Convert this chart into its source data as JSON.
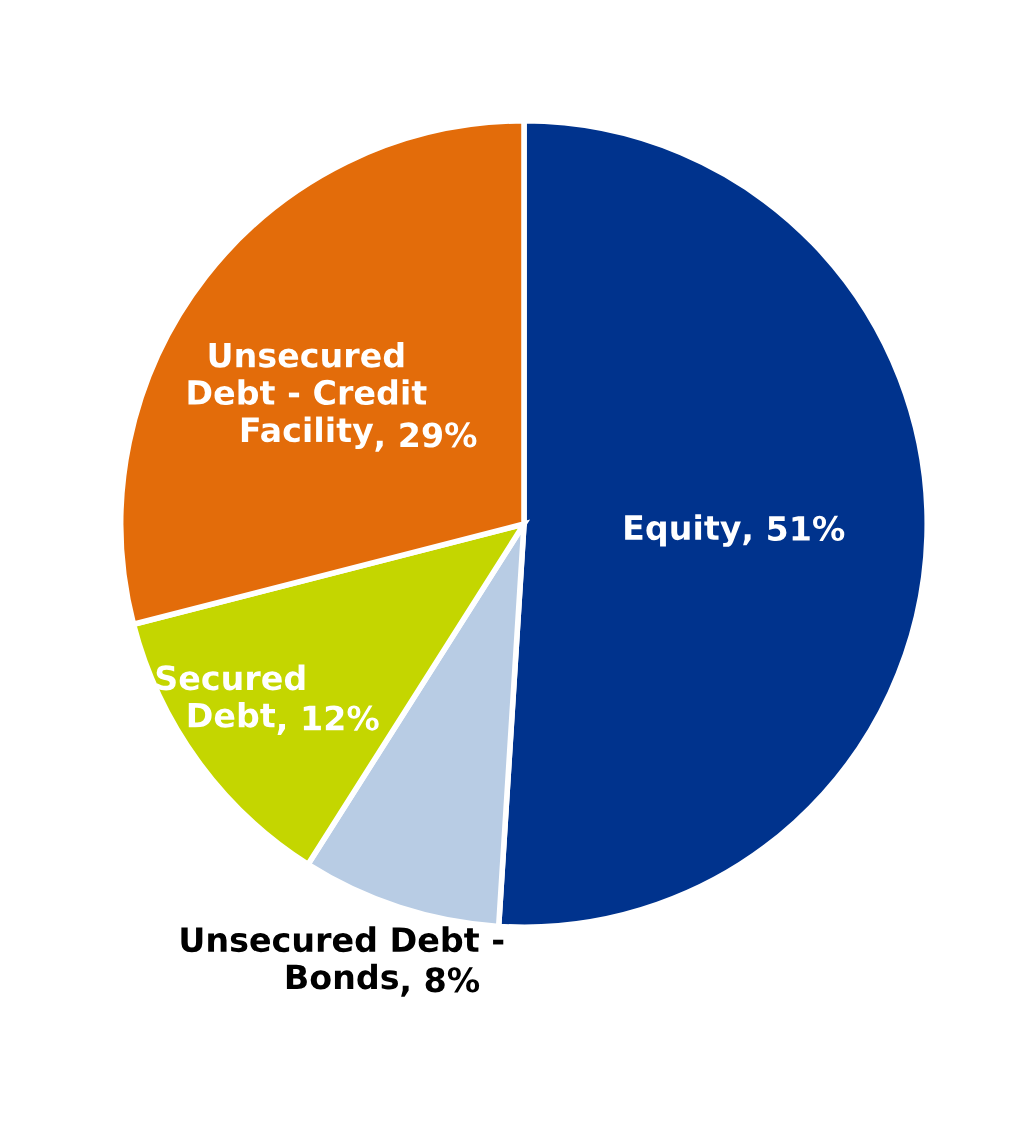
{
  "chart_data": {
    "type": "pie",
    "categories": [
      "Equity",
      "Unsecured Debt - Bonds",
      "Secured Debt",
      "Unsecured Debt - Credit Facility"
    ],
    "values": [
      51,
      8,
      12,
      29
    ],
    "value_labels": [
      ", 51%",
      ", 8%",
      ", 12%",
      ", 29%"
    ],
    "colors": [
      "#00338d",
      "#b8cce4",
      "#c4d600",
      "#e36c0a"
    ]
  }
}
